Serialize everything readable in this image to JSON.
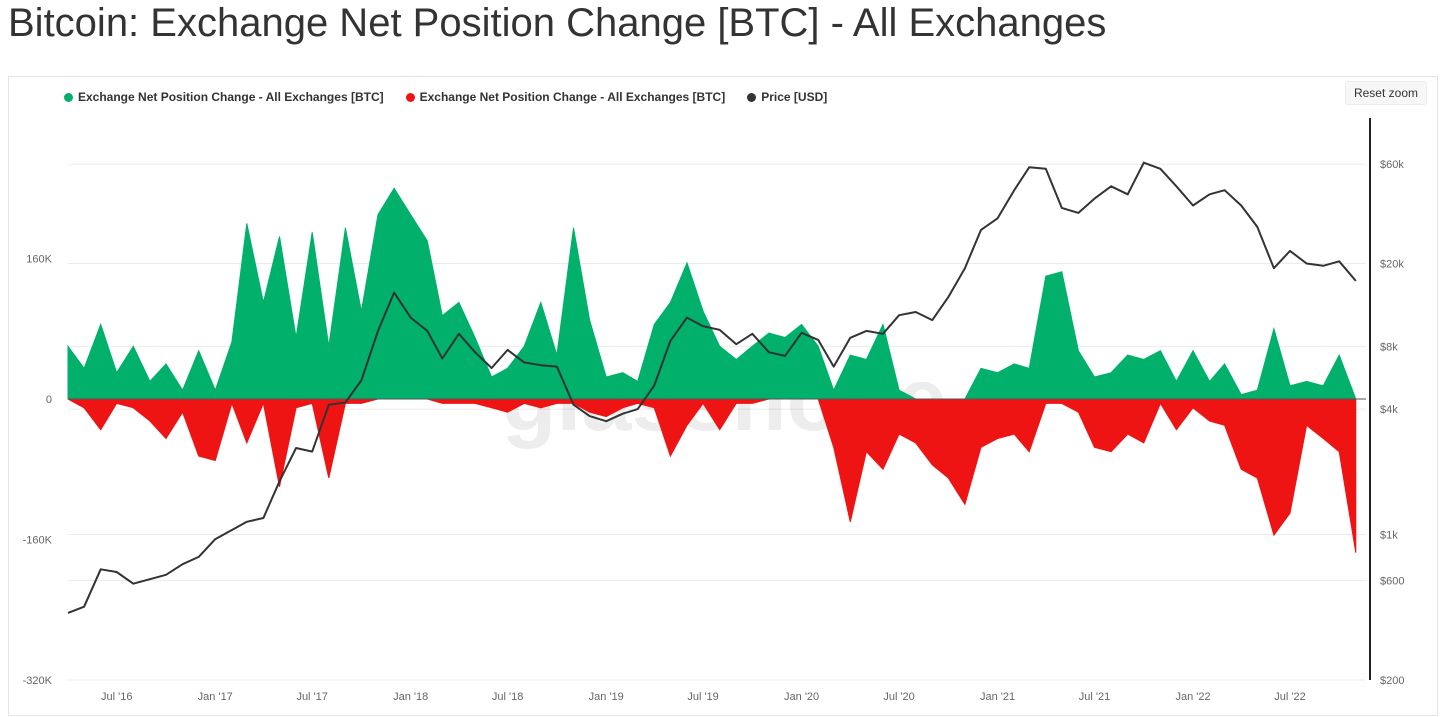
{
  "title": "Bitcoin: Exchange Net Position Change [BTC] - All Exchanges",
  "reset_zoom_label": "Reset zoom",
  "watermark": "glassnode",
  "legend": [
    {
      "label": "Exchange Net Position Change - All Exchanges [BTC]",
      "color": "#00b06b"
    },
    {
      "label": "Exchange Net Position Change - All Exchanges [BTC]",
      "color": "#ee1414"
    },
    {
      "label": "Price [USD]",
      "color": "#333333"
    }
  ],
  "chart_data": {
    "type": "area",
    "x_ticks": [
      "Jul '16",
      "Jan '17",
      "Jul '17",
      "Jan '18",
      "Jul '18",
      "Jan '19",
      "Jul '19",
      "Jan '20",
      "Jul '20",
      "Jan '21",
      "Jul '21",
      "Jan '22",
      "Jul '22"
    ],
    "x_range": [
      "2016-04-01",
      "2022-11-20"
    ],
    "y_left": {
      "ticks": [
        "160K",
        "0",
        "-160K",
        "-320K"
      ],
      "range": [
        -320000,
        320000
      ]
    },
    "y_right": {
      "scale": "log",
      "ticks": [
        "$60k",
        "$20k",
        "$8k",
        "$4k",
        "$1k",
        "$600",
        "$200"
      ],
      "range": [
        200,
        100000
      ]
    },
    "series": [
      {
        "name": "Exchange Net Position Change - All Exchanges [BTC]",
        "kind": "area",
        "sign": "positive",
        "color": "#00b06b",
        "points": [
          [
            "2016-04-01",
            60000
          ],
          [
            "2016-05-01",
            35000
          ],
          [
            "2016-06-01",
            85000
          ],
          [
            "2016-07-01",
            30000
          ],
          [
            "2016-08-01",
            60000
          ],
          [
            "2016-09-01",
            20000
          ],
          [
            "2016-10-01",
            40000
          ],
          [
            "2016-11-01",
            10000
          ],
          [
            "2016-12-01",
            55000
          ],
          [
            "2017-01-01",
            10000
          ],
          [
            "2017-02-01",
            65000
          ],
          [
            "2017-03-01",
            200000
          ],
          [
            "2017-04-01",
            110000
          ],
          [
            "2017-05-01",
            185000
          ],
          [
            "2017-06-01",
            70000
          ],
          [
            "2017-07-01",
            190000
          ],
          [
            "2017-08-01",
            60000
          ],
          [
            "2017-09-01",
            195000
          ],
          [
            "2017-10-01",
            100000
          ],
          [
            "2017-11-01",
            210000
          ],
          [
            "2017-12-01",
            240000
          ],
          [
            "2018-01-01",
            210000
          ],
          [
            "2018-02-01",
            180000
          ],
          [
            "2018-03-01",
            95000
          ],
          [
            "2018-04-01",
            110000
          ],
          [
            "2018-05-01",
            70000
          ],
          [
            "2018-06-01",
            25000
          ],
          [
            "2018-07-01",
            35000
          ],
          [
            "2018-08-01",
            60000
          ],
          [
            "2018-09-01",
            110000
          ],
          [
            "2018-10-01",
            50000
          ],
          [
            "2018-11-01",
            195000
          ],
          [
            "2018-12-01",
            90000
          ],
          [
            "2019-01-01",
            25000
          ],
          [
            "2019-02-01",
            30000
          ],
          [
            "2019-03-01",
            20000
          ],
          [
            "2019-04-01",
            85000
          ],
          [
            "2019-05-01",
            110000
          ],
          [
            "2019-06-01",
            155000
          ],
          [
            "2019-07-01",
            100000
          ],
          [
            "2019-08-01",
            60000
          ],
          [
            "2019-09-01",
            45000
          ],
          [
            "2019-10-01",
            60000
          ],
          [
            "2019-11-01",
            75000
          ],
          [
            "2019-12-01",
            70000
          ],
          [
            "2020-01-01",
            85000
          ],
          [
            "2020-02-01",
            60000
          ],
          [
            "2020-03-01",
            10000
          ],
          [
            "2020-04-01",
            50000
          ],
          [
            "2020-05-01",
            45000
          ],
          [
            "2020-06-01",
            85000
          ],
          [
            "2020-07-01",
            10000
          ],
          [
            "2020-08-01",
            0
          ],
          [
            "2020-09-01",
            0
          ],
          [
            "2020-10-01",
            0
          ],
          [
            "2020-11-01",
            0
          ],
          [
            "2020-12-01",
            35000
          ],
          [
            "2021-01-01",
            30000
          ],
          [
            "2021-02-01",
            40000
          ],
          [
            "2021-03-01",
            35000
          ],
          [
            "2021-04-01",
            140000
          ],
          [
            "2021-05-01",
            145000
          ],
          [
            "2021-06-01",
            55000
          ],
          [
            "2021-07-01",
            25000
          ],
          [
            "2021-08-01",
            30000
          ],
          [
            "2021-09-01",
            50000
          ],
          [
            "2021-10-01",
            45000
          ],
          [
            "2021-11-01",
            55000
          ],
          [
            "2021-12-01",
            20000
          ],
          [
            "2022-01-01",
            55000
          ],
          [
            "2022-02-01",
            20000
          ],
          [
            "2022-03-01",
            40000
          ],
          [
            "2022-04-01",
            5000
          ],
          [
            "2022-05-01",
            10000
          ],
          [
            "2022-06-01",
            80000
          ],
          [
            "2022-07-01",
            15000
          ],
          [
            "2022-08-01",
            20000
          ],
          [
            "2022-09-01",
            15000
          ],
          [
            "2022-10-01",
            50000
          ],
          [
            "2022-11-01",
            0
          ]
        ]
      },
      {
        "name": "Exchange Net Position Change - All Exchanges [BTC]",
        "kind": "area",
        "sign": "negative",
        "color": "#ee1414",
        "points": [
          [
            "2016-04-01",
            0
          ],
          [
            "2016-05-01",
            -10000
          ],
          [
            "2016-06-01",
            -35000
          ],
          [
            "2016-07-01",
            -5000
          ],
          [
            "2016-08-01",
            -10000
          ],
          [
            "2016-09-01",
            -25000
          ],
          [
            "2016-10-01",
            -45000
          ],
          [
            "2016-11-01",
            -15000
          ],
          [
            "2016-12-01",
            -65000
          ],
          [
            "2017-01-01",
            -70000
          ],
          [
            "2017-02-01",
            -5000
          ],
          [
            "2017-03-01",
            -50000
          ],
          [
            "2017-04-01",
            -5000
          ],
          [
            "2017-05-01",
            -100000
          ],
          [
            "2017-06-01",
            -10000
          ],
          [
            "2017-07-01",
            -5000
          ],
          [
            "2017-08-01",
            -90000
          ],
          [
            "2017-09-01",
            -5000
          ],
          [
            "2017-10-01",
            -5000
          ],
          [
            "2017-11-01",
            0
          ],
          [
            "2017-12-01",
            0
          ],
          [
            "2018-01-01",
            0
          ],
          [
            "2018-02-01",
            0
          ],
          [
            "2018-03-01",
            -5000
          ],
          [
            "2018-04-01",
            -5000
          ],
          [
            "2018-05-01",
            -5000
          ],
          [
            "2018-06-01",
            -10000
          ],
          [
            "2018-07-01",
            -15000
          ],
          [
            "2018-08-01",
            -5000
          ],
          [
            "2018-09-01",
            -10000
          ],
          [
            "2018-10-01",
            -5000
          ],
          [
            "2018-11-01",
            -5000
          ],
          [
            "2018-12-01",
            -15000
          ],
          [
            "2019-01-01",
            -20000
          ],
          [
            "2019-02-01",
            -10000
          ],
          [
            "2019-03-01",
            -5000
          ],
          [
            "2019-04-01",
            -10000
          ],
          [
            "2019-05-01",
            -65000
          ],
          [
            "2019-06-01",
            -30000
          ],
          [
            "2019-07-01",
            -5000
          ],
          [
            "2019-08-01",
            -35000
          ],
          [
            "2019-09-01",
            -5000
          ],
          [
            "2019-10-01",
            -5000
          ],
          [
            "2019-11-01",
            0
          ],
          [
            "2019-12-01",
            0
          ],
          [
            "2020-01-01",
            0
          ],
          [
            "2020-02-01",
            0
          ],
          [
            "2020-03-01",
            -55000
          ],
          [
            "2020-04-01",
            -140000
          ],
          [
            "2020-05-01",
            -60000
          ],
          [
            "2020-06-01",
            -80000
          ],
          [
            "2020-07-01",
            -40000
          ],
          [
            "2020-08-01",
            -50000
          ],
          [
            "2020-09-01",
            -75000
          ],
          [
            "2020-10-01",
            -90000
          ],
          [
            "2020-11-01",
            -120000
          ],
          [
            "2020-12-01",
            -55000
          ],
          [
            "2021-01-01",
            -45000
          ],
          [
            "2021-02-01",
            -40000
          ],
          [
            "2021-03-01",
            -60000
          ],
          [
            "2021-04-01",
            -5000
          ],
          [
            "2021-05-01",
            -5000
          ],
          [
            "2021-06-01",
            -15000
          ],
          [
            "2021-07-01",
            -55000
          ],
          [
            "2021-08-01",
            -60000
          ],
          [
            "2021-09-01",
            -40000
          ],
          [
            "2021-10-01",
            -50000
          ],
          [
            "2021-11-01",
            -5000
          ],
          [
            "2021-12-01",
            -35000
          ],
          [
            "2022-01-01",
            -10000
          ],
          [
            "2022-02-01",
            -25000
          ],
          [
            "2022-03-01",
            -30000
          ],
          [
            "2022-04-01",
            -80000
          ],
          [
            "2022-05-01",
            -90000
          ],
          [
            "2022-06-01",
            -155000
          ],
          [
            "2022-07-01",
            -130000
          ],
          [
            "2022-08-01",
            -30000
          ],
          [
            "2022-09-01",
            -45000
          ],
          [
            "2022-10-01",
            -60000
          ],
          [
            "2022-11-01",
            -175000
          ]
        ]
      },
      {
        "name": "Price [USD]",
        "kind": "line",
        "axis": "right",
        "color": "#333333",
        "points": [
          [
            "2016-04-01",
            420
          ],
          [
            "2016-05-01",
            450
          ],
          [
            "2016-06-01",
            680
          ],
          [
            "2016-07-01",
            660
          ],
          [
            "2016-08-01",
            580
          ],
          [
            "2016-09-01",
            610
          ],
          [
            "2016-10-01",
            640
          ],
          [
            "2016-11-01",
            720
          ],
          [
            "2016-12-01",
            780
          ],
          [
            "2017-01-01",
            950
          ],
          [
            "2017-02-01",
            1050
          ],
          [
            "2017-03-01",
            1150
          ],
          [
            "2017-04-01",
            1200
          ],
          [
            "2017-05-01",
            1800
          ],
          [
            "2017-06-01",
            2600
          ],
          [
            "2017-07-01",
            2500
          ],
          [
            "2017-08-01",
            4200
          ],
          [
            "2017-09-01",
            4300
          ],
          [
            "2017-10-01",
            5500
          ],
          [
            "2017-11-01",
            9500
          ],
          [
            "2017-12-01",
            14500
          ],
          [
            "2018-01-01",
            11000
          ],
          [
            "2018-02-01",
            9500
          ],
          [
            "2018-03-01",
            7000
          ],
          [
            "2018-04-01",
            9200
          ],
          [
            "2018-05-01",
            7500
          ],
          [
            "2018-06-01",
            6300
          ],
          [
            "2018-07-01",
            7700
          ],
          [
            "2018-08-01",
            6700
          ],
          [
            "2018-09-01",
            6500
          ],
          [
            "2018-10-01",
            6400
          ],
          [
            "2018-11-01",
            4200
          ],
          [
            "2018-12-01",
            3700
          ],
          [
            "2019-01-01",
            3500
          ],
          [
            "2019-02-01",
            3800
          ],
          [
            "2019-03-01",
            4000
          ],
          [
            "2019-04-01",
            5200
          ],
          [
            "2019-05-01",
            8500
          ],
          [
            "2019-06-01",
            11000
          ],
          [
            "2019-07-01",
            10000
          ],
          [
            "2019-08-01",
            9600
          ],
          [
            "2019-09-01",
            8200
          ],
          [
            "2019-10-01",
            9200
          ],
          [
            "2019-11-01",
            7500
          ],
          [
            "2019-12-01",
            7200
          ],
          [
            "2020-01-01",
            9300
          ],
          [
            "2020-02-01",
            8600
          ],
          [
            "2020-03-01",
            6400
          ],
          [
            "2020-04-01",
            8800
          ],
          [
            "2020-05-01",
            9500
          ],
          [
            "2020-06-01",
            9200
          ],
          [
            "2020-07-01",
            11300
          ],
          [
            "2020-08-01",
            11700
          ],
          [
            "2020-09-01",
            10700
          ],
          [
            "2020-10-01",
            13800
          ],
          [
            "2020-11-01",
            19000
          ],
          [
            "2020-12-01",
            29000
          ],
          [
            "2021-01-01",
            33000
          ],
          [
            "2021-02-01",
            45000
          ],
          [
            "2021-03-01",
            58000
          ],
          [
            "2021-04-01",
            57000
          ],
          [
            "2021-05-01",
            37000
          ],
          [
            "2021-06-01",
            35000
          ],
          [
            "2021-07-01",
            41000
          ],
          [
            "2021-08-01",
            47000
          ],
          [
            "2021-09-01",
            43000
          ],
          [
            "2021-10-01",
            61000
          ],
          [
            "2021-11-01",
            57000
          ],
          [
            "2021-12-01",
            47000
          ],
          [
            "2022-01-01",
            38000
          ],
          [
            "2022-02-01",
            43000
          ],
          [
            "2022-03-01",
            45000
          ],
          [
            "2022-04-01",
            38000
          ],
          [
            "2022-05-01",
            30000
          ],
          [
            "2022-06-01",
            19000
          ],
          [
            "2022-07-01",
            23000
          ],
          [
            "2022-08-01",
            20000
          ],
          [
            "2022-09-01",
            19500
          ],
          [
            "2022-10-01",
            20500
          ],
          [
            "2022-11-01",
            16500
          ]
        ]
      }
    ]
  }
}
